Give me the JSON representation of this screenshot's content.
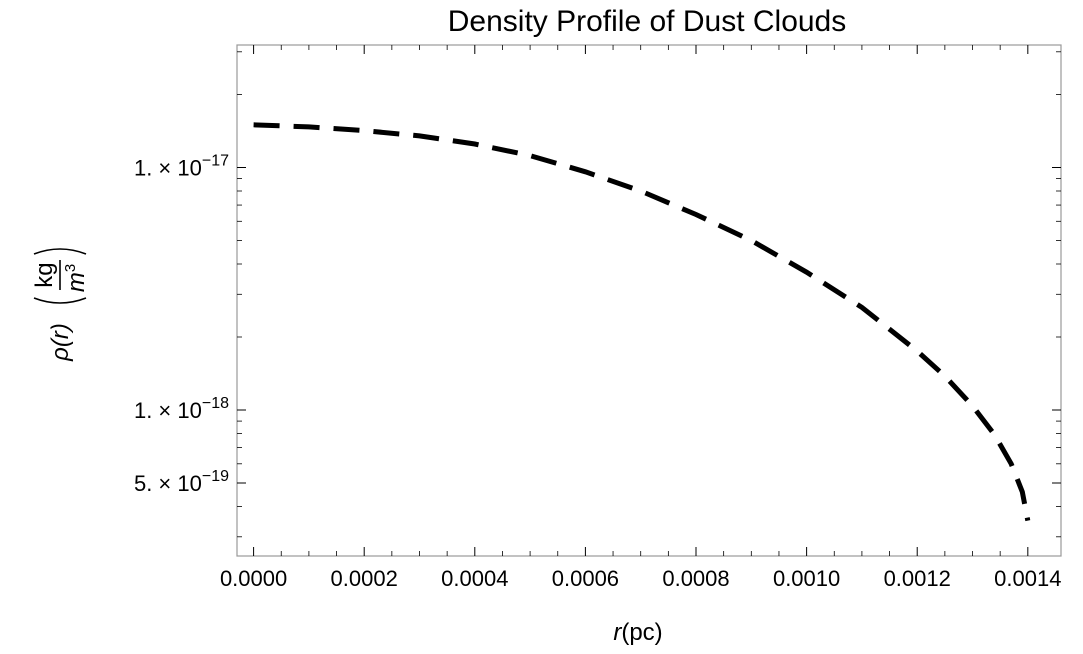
{
  "chart_data": {
    "type": "line",
    "title": "Density Profile of Dust Clouds",
    "xlabel": {
      "italic": "r",
      "unit": "(pc)"
    },
    "ylabel": {
      "italic": "ρ(r)",
      "unit_num": "kg",
      "unit_den": "m",
      "unit_den_exp": "3"
    },
    "x_ticks": [
      {
        "value": 0.0,
        "label": "0.0000"
      },
      {
        "value": 0.0002,
        "label": "0.0002"
      },
      {
        "value": 0.0004,
        "label": "0.0004"
      },
      {
        "value": 0.0006,
        "label": "0.0006"
      },
      {
        "value": 0.0008,
        "label": "0.0008"
      },
      {
        "value": 0.001,
        "label": "0.0010"
      },
      {
        "value": 0.0012,
        "label": "0.0012"
      },
      {
        "value": 0.0014,
        "label": "0.0014"
      }
    ],
    "y_ticks": [
      {
        "value": 1e-17,
        "mantissa": "1.",
        "exponent": "-17"
      },
      {
        "value": 1e-18,
        "mantissa": "1.",
        "exponent": "-18"
      },
      {
        "value": 5e-19,
        "mantissa": "5.",
        "exponent": "-19"
      }
    ],
    "xlim": [
      -3e-05,
      0.00146
    ],
    "ylim": [
      2.5e-19,
      3.2e-17
    ],
    "y_scale": "log",
    "grid": false,
    "line_style": "dashed",
    "line_color": "#000000",
    "series": [
      {
        "x": [
          0,
          0.0001,
          0.0002,
          0.0003,
          0.0004,
          0.0005,
          0.0006,
          0.0007,
          0.0008,
          0.0009,
          0.001,
          0.0011,
          0.0012,
          0.00125,
          0.0013,
          0.00134,
          0.00137,
          0.00139,
          0.0014
        ],
        "y": [
          1.5e-17,
          1.47e-17,
          1.42e-17,
          1.35e-17,
          1.25e-17,
          1.12e-17,
          9.6e-18,
          8e-18,
          6.4e-18,
          5e-18,
          3.7e-18,
          2.65e-18,
          1.75e-18,
          1.38e-18,
          1.04e-18,
          7.9e-19,
          6e-19,
          4.6e-19,
          3.5e-19
        ]
      }
    ]
  }
}
